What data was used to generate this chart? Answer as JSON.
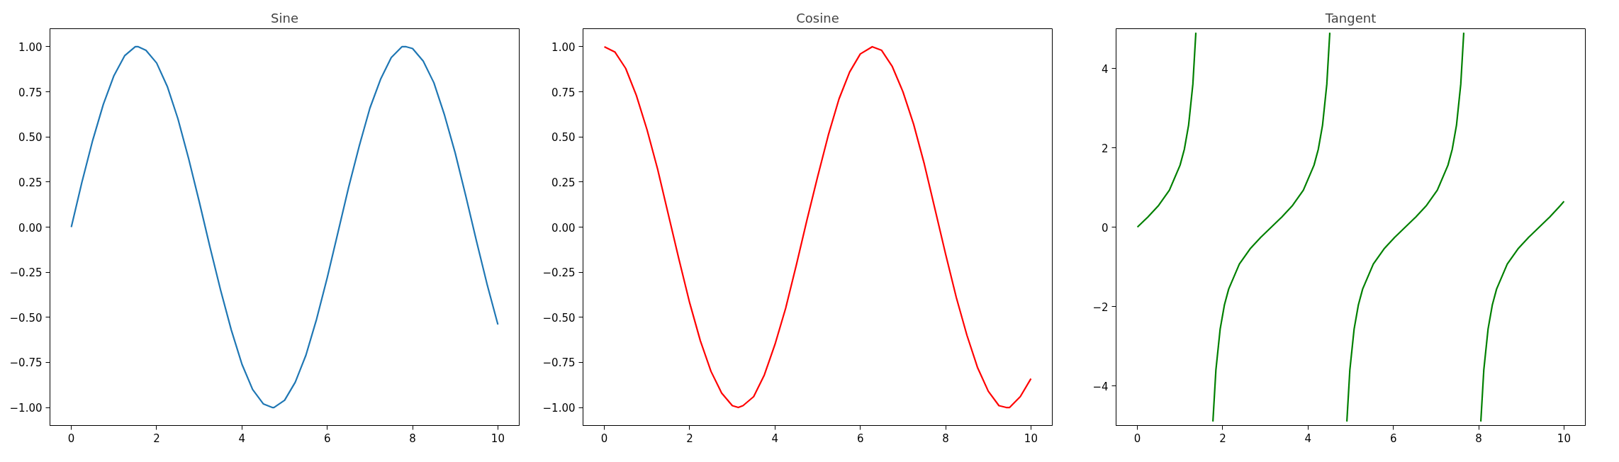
{
  "chart_data": [
    {
      "type": "line",
      "title": "Sine",
      "xlim": [
        -0.5,
        10.5
      ],
      "xticks": [
        0,
        2,
        4,
        6,
        8,
        10
      ],
      "ylim": [
        -1.1,
        1.1
      ],
      "yticks": [
        {
          "value": -1,
          "label": "−1.00"
        },
        {
          "value": -0.75,
          "label": "−0.75"
        },
        {
          "value": -0.5,
          "label": "−0.50"
        },
        {
          "value": -0.25,
          "label": "−0.25"
        },
        {
          "value": 0,
          "label": "0.00"
        },
        {
          "value": 0.25,
          "label": "0.25"
        },
        {
          "value": 0.5,
          "label": "0.50"
        },
        {
          "value": 0.75,
          "label": "0.75"
        },
        {
          "value": 1,
          "label": "1.00"
        }
      ],
      "grid": false,
      "line_style": "solid",
      "marker": "none",
      "series": [
        {
          "color": "#1f77b4",
          "x": [
            0,
            0.25,
            0.5,
            0.75,
            1,
            1.25,
            1.5,
            1.57,
            1.75,
            2,
            2.25,
            2.5,
            2.75,
            3,
            3.25,
            3.5,
            3.75,
            4,
            4.25,
            4.5,
            4.71,
            4.75,
            5,
            5.25,
            5.5,
            5.75,
            6,
            6.25,
            6.5,
            6.75,
            7,
            7.25,
            7.5,
            7.75,
            7.85,
            8,
            8.25,
            8.5,
            8.75,
            9,
            9.25,
            9.5,
            9.75,
            10
          ],
          "values": [
            0,
            0.25,
            0.48,
            0.68,
            0.84,
            0.95,
            1.0,
            1.0,
            0.98,
            0.91,
            0.78,
            0.6,
            0.38,
            0.14,
            -0.11,
            -0.35,
            -0.57,
            -0.76,
            -0.9,
            -0.98,
            -1.0,
            -1.0,
            -0.96,
            -0.86,
            -0.71,
            -0.51,
            -0.28,
            -0.03,
            0.22,
            0.45,
            0.66,
            0.82,
            0.94,
            1.0,
            1.0,
            0.99,
            0.92,
            0.8,
            0.62,
            0.41,
            0.17,
            -0.08,
            -0.32,
            -0.54
          ]
        }
      ]
    },
    {
      "type": "line",
      "title": "Cosine",
      "xlim": [
        -0.5,
        10.5
      ],
      "xticks": [
        0,
        2,
        4,
        6,
        8,
        10
      ],
      "ylim": [
        -1.1,
        1.1
      ],
      "yticks": [
        {
          "value": -1,
          "label": "−1.00"
        },
        {
          "value": -0.75,
          "label": "−0.75"
        },
        {
          "value": -0.5,
          "label": "−0.50"
        },
        {
          "value": -0.25,
          "label": "−0.25"
        },
        {
          "value": 0,
          "label": "0.00"
        },
        {
          "value": 0.25,
          "label": "0.25"
        },
        {
          "value": 0.5,
          "label": "0.50"
        },
        {
          "value": 0.75,
          "label": "0.75"
        },
        {
          "value": 1,
          "label": "1.00"
        }
      ],
      "grid": false,
      "line_style": "solid",
      "marker": "none",
      "series": [
        {
          "color": "#ff0000",
          "x": [
            0,
            0.25,
            0.5,
            0.75,
            1,
            1.25,
            1.5,
            1.75,
            2,
            2.25,
            2.5,
            2.75,
            3,
            3.14,
            3.25,
            3.5,
            3.75,
            4,
            4.25,
            4.5,
            4.75,
            5,
            5.25,
            5.5,
            5.75,
            6,
            6.28,
            6.5,
            6.75,
            7,
            7.25,
            7.5,
            7.75,
            8,
            8.25,
            8.5,
            8.75,
            9,
            9.25,
            9.42,
            9.5,
            9.75,
            10
          ],
          "values": [
            1.0,
            0.97,
            0.88,
            0.73,
            0.54,
            0.32,
            0.07,
            -0.18,
            -0.42,
            -0.63,
            -0.8,
            -0.92,
            -0.99,
            -1.0,
            -0.99,
            -0.94,
            -0.82,
            -0.65,
            -0.45,
            -0.21,
            0.04,
            0.28,
            0.51,
            0.71,
            0.86,
            0.96,
            1.0,
            0.98,
            0.89,
            0.75,
            0.57,
            0.35,
            0.1,
            -0.15,
            -0.39,
            -0.6,
            -0.78,
            -0.91,
            -0.99,
            -1.0,
            -1.0,
            -0.94,
            -0.84
          ]
        }
      ]
    },
    {
      "type": "line",
      "title": "Tangent",
      "xlim": [
        -0.5,
        10.5
      ],
      "xticks": [
        0,
        2,
        4,
        6,
        8,
        10
      ],
      "ylim": [
        -5,
        5
      ],
      "yticks": [
        {
          "value": -4,
          "label": "−4"
        },
        {
          "value": -2,
          "label": "−2"
        },
        0,
        2,
        4
      ],
      "grid": false,
      "line_style": "solid",
      "marker": "none",
      "series": [
        {
          "color": "#008000",
          "x": [
            0,
            0.25,
            0.5,
            0.75,
            1,
            1.1,
            1.2,
            1.3,
            1.37,
            1.45,
            1.7,
            1.77,
            1.84,
            1.94,
            2.04,
            2.14,
            2.39,
            2.64,
            2.89,
            3.14,
            3.39,
            3.64,
            3.89,
            4.14,
            4.24,
            4.34,
            4.44,
            4.51,
            4.6,
            4.85,
            4.91,
            4.98,
            5.08,
            5.18,
            5.28,
            5.53,
            5.78,
            6.03,
            6.28,
            6.53,
            6.78,
            7.03,
            7.28,
            7.38,
            7.48,
            7.58,
            7.65,
            7.75,
            8.0,
            8.05,
            8.12,
            8.22,
            8.32,
            8.42,
            8.67,
            8.92,
            9.17,
            9.42,
            9.67,
            9.92,
            10
          ],
          "values": [
            0,
            0.26,
            0.55,
            0.93,
            1.56,
            1.96,
            2.57,
            3.6,
            4.9,
            null,
            null,
            -4.9,
            -3.6,
            -2.57,
            -1.96,
            -1.56,
            -0.93,
            -0.55,
            -0.26,
            0,
            0.26,
            0.55,
            0.93,
            1.56,
            1.96,
            2.57,
            3.6,
            4.9,
            null,
            null,
            -4.9,
            -3.6,
            -2.57,
            -1.96,
            -1.56,
            -0.93,
            -0.55,
            -0.26,
            0,
            0.26,
            0.55,
            0.93,
            1.56,
            1.96,
            2.57,
            3.6,
            4.9,
            null,
            null,
            -4.9,
            -3.6,
            -2.57,
            -1.96,
            -1.56,
            -0.93,
            -0.55,
            -0.26,
            0,
            0.26,
            0.55,
            0.65
          ]
        }
      ]
    }
  ]
}
